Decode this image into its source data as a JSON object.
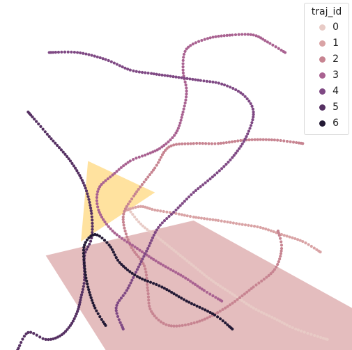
{
  "chart_data": {
    "type": "scatter",
    "legend": {
      "title": "traj_id",
      "placement": "top-right",
      "items": [
        {
          "label": "0",
          "color": "#e8cbc6"
        },
        {
          "label": "1",
          "color": "#d9a3a5"
        },
        {
          "label": "2",
          "color": "#c78491"
        },
        {
          "label": "3",
          "color": "#a96291"
        },
        {
          "label": "4",
          "color": "#7f4984"
        },
        {
          "label": "5",
          "color": "#563163"
        },
        {
          "label": "6",
          "color": "#231a35"
        }
      ]
    },
    "regions": [
      {
        "name": "cone",
        "color": "#d9a3a5",
        "points": [
          [
            0.13,
            0.27
          ],
          [
            0.55,
            0.37
          ],
          [
            1.0,
            0.12
          ],
          [
            1.0,
            0.0
          ],
          [
            0.3,
            0.0
          ]
        ]
      },
      {
        "name": "triangle",
        "color": "#ffd77a",
        "points": [
          [
            0.25,
            0.54
          ],
          [
            0.23,
            0.31
          ],
          [
            0.44,
            0.45
          ]
        ]
      }
    ],
    "series": [
      {
        "label": "0",
        "color": "#e8cbc6",
        "points": [
          [
            0.36,
            0.41
          ],
          [
            0.4,
            0.36
          ],
          [
            0.45,
            0.32
          ],
          [
            0.5,
            0.28
          ],
          [
            0.55,
            0.24
          ],
          [
            0.6,
            0.2
          ],
          [
            0.66,
            0.16
          ],
          [
            0.72,
            0.12
          ],
          [
            0.78,
            0.09
          ],
          [
            0.84,
            0.06
          ],
          [
            0.93,
            0.03
          ]
        ]
      },
      {
        "label": "1",
        "color": "#d9a3a5",
        "points": [
          [
            0.36,
            0.4
          ],
          [
            0.4,
            0.41
          ],
          [
            0.44,
            0.4
          ],
          [
            0.5,
            0.39
          ],
          [
            0.55,
            0.38
          ],
          [
            0.62,
            0.37
          ],
          [
            0.68,
            0.36
          ],
          [
            0.74,
            0.35
          ],
          [
            0.8,
            0.33
          ],
          [
            0.86,
            0.31
          ],
          [
            0.91,
            0.28
          ]
        ]
      },
      {
        "label": "2",
        "color": "#c78491",
        "points": [
          [
            0.86,
            0.59
          ],
          [
            0.78,
            0.6
          ],
          [
            0.7,
            0.6
          ],
          [
            0.62,
            0.59
          ],
          [
            0.55,
            0.59
          ],
          [
            0.48,
            0.58
          ],
          [
            0.44,
            0.52
          ],
          [
            0.38,
            0.44
          ],
          [
            0.35,
            0.38
          ],
          [
            0.37,
            0.3
          ],
          [
            0.41,
            0.24
          ],
          [
            0.42,
            0.17
          ],
          [
            0.43,
            0.11
          ],
          [
            0.48,
            0.07
          ],
          [
            0.56,
            0.08
          ],
          [
            0.64,
            0.12
          ],
          [
            0.72,
            0.18
          ],
          [
            0.78,
            0.23
          ],
          [
            0.8,
            0.29
          ],
          [
            0.79,
            0.34
          ]
        ]
      },
      {
        "label": "3",
        "color": "#a96291",
        "points": [
          [
            0.81,
            0.85
          ],
          [
            0.76,
            0.88
          ],
          [
            0.72,
            0.9
          ],
          [
            0.66,
            0.9
          ],
          [
            0.59,
            0.89
          ],
          [
            0.53,
            0.86
          ],
          [
            0.52,
            0.8
          ],
          [
            0.53,
            0.74
          ],
          [
            0.52,
            0.68
          ],
          [
            0.5,
            0.62
          ],
          [
            0.46,
            0.58
          ],
          [
            0.42,
            0.56
          ],
          [
            0.37,
            0.54
          ],
          [
            0.32,
            0.5
          ],
          [
            0.28,
            0.46
          ],
          [
            0.28,
            0.4
          ],
          [
            0.32,
            0.34
          ],
          [
            0.39,
            0.29
          ],
          [
            0.45,
            0.25
          ],
          [
            0.52,
            0.21
          ],
          [
            0.58,
            0.17
          ],
          [
            0.63,
            0.14
          ]
        ]
      },
      {
        "label": "4",
        "color": "#7f4984",
        "points": [
          [
            0.14,
            0.85
          ],
          [
            0.22,
            0.85
          ],
          [
            0.3,
            0.83
          ],
          [
            0.37,
            0.8
          ],
          [
            0.43,
            0.79
          ],
          [
            0.5,
            0.78
          ],
          [
            0.57,
            0.77
          ],
          [
            0.63,
            0.76
          ],
          [
            0.69,
            0.73
          ],
          [
            0.72,
            0.68
          ],
          [
            0.7,
            0.61
          ],
          [
            0.66,
            0.55
          ],
          [
            0.61,
            0.5
          ],
          [
            0.55,
            0.45
          ],
          [
            0.5,
            0.4
          ],
          [
            0.45,
            0.35
          ],
          [
            0.42,
            0.29
          ],
          [
            0.39,
            0.23
          ],
          [
            0.36,
            0.17
          ],
          [
            0.33,
            0.12
          ],
          [
            0.35,
            0.06
          ]
        ]
      },
      {
        "label": "5",
        "color": "#563163",
        "points": [
          [
            0.08,
            0.68
          ],
          [
            0.14,
            0.61
          ],
          [
            0.2,
            0.54
          ],
          [
            0.24,
            0.47
          ],
          [
            0.26,
            0.39
          ],
          [
            0.26,
            0.32
          ],
          [
            0.24,
            0.27
          ],
          [
            0.24,
            0.2
          ],
          [
            0.23,
            0.15
          ],
          [
            0.22,
            0.11
          ],
          [
            0.2,
            0.07
          ],
          [
            0.17,
            0.04
          ],
          [
            0.13,
            0.03
          ],
          [
            0.08,
            0.05
          ],
          [
            0.05,
            0.0
          ]
        ]
      },
      {
        "label": "6",
        "color": "#231a35",
        "points": [
          [
            0.3,
            0.07
          ],
          [
            0.27,
            0.12
          ],
          [
            0.25,
            0.18
          ],
          [
            0.24,
            0.24
          ],
          [
            0.24,
            0.3
          ],
          [
            0.27,
            0.33
          ],
          [
            0.31,
            0.3
          ],
          [
            0.34,
            0.25
          ],
          [
            0.39,
            0.21
          ],
          [
            0.46,
            0.18
          ],
          [
            0.53,
            0.14
          ],
          [
            0.61,
            0.1
          ],
          [
            0.66,
            0.06
          ]
        ]
      }
    ]
  }
}
